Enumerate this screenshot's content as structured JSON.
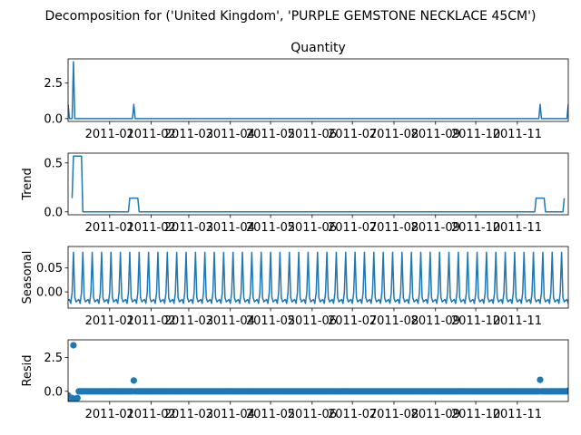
{
  "figure": {
    "suptitle": "Decomposition for ('United Kingdom', 'PURPLE GEMSTONE NECKLACE 45CM')"
  },
  "chart_data": [
    {
      "type": "line",
      "title": "Quantity",
      "ylabel": "",
      "xlim": [
        "2010-12-01",
        "2011-12-09"
      ],
      "ylim": [
        -0.2,
        4.2
      ],
      "yticks": [
        "0.0",
        "2.5"
      ],
      "xticks": [
        "2011-01",
        "2011-02",
        "2011-03",
        "2011-04",
        "2011-05",
        "2011-06",
        "2011-07",
        "2011-08",
        "2011-09",
        "2011-10",
        "2011-11"
      ],
      "color": "#1f77b4",
      "series": [
        {
          "points": [
            [
              "2010-12-01",
              1
            ],
            [
              "2010-12-02",
              0
            ],
            [
              "2010-12-04",
              0
            ],
            [
              "2010-12-05",
              4
            ],
            [
              "2010-12-06",
              0
            ],
            [
              "2011-01-18",
              0
            ],
            [
              "2011-01-19",
              1
            ],
            [
              "2011-01-20",
              0
            ],
            [
              "2011-11-17",
              0
            ],
            [
              "2011-11-18",
              1
            ],
            [
              "2011-11-19",
              0
            ],
            [
              "2011-12-08",
              0
            ],
            [
              "2011-12-09",
              1
            ]
          ]
        }
      ]
    },
    {
      "type": "line",
      "title": "",
      "ylabel": "Trend",
      "xlim": [
        "2010-12-01",
        "2011-12-09"
      ],
      "ylim": [
        -0.03,
        0.6
      ],
      "yticks": [
        "0.0",
        "0.5"
      ],
      "xticks": [
        "2011-01",
        "2011-02",
        "2011-03",
        "2011-04",
        "2011-05",
        "2011-06",
        "2011-07",
        "2011-08",
        "2011-09",
        "2011-10",
        "2011-11"
      ],
      "color": "#1f77b4",
      "series": [
        {
          "points": [
            [
              "2010-12-04",
              0.14
            ],
            [
              "2010-12-05",
              0.57
            ],
            [
              "2010-12-11",
              0.57
            ],
            [
              "2010-12-12",
              0
            ],
            [
              "2011-01-15",
              0
            ],
            [
              "2011-01-16",
              0.14
            ],
            [
              "2011-01-22",
              0.14
            ],
            [
              "2011-01-23",
              0
            ],
            [
              "2011-11-14",
              0
            ],
            [
              "2011-11-15",
              0.14
            ],
            [
              "2011-11-21",
              0.14
            ],
            [
              "2011-11-22",
              0
            ],
            [
              "2011-12-05",
              0
            ],
            [
              "2011-12-06",
              0.14
            ]
          ]
        }
      ]
    },
    {
      "type": "line",
      "title": "",
      "ylabel": "Seasonal",
      "xlim": [
        "2010-12-01",
        "2011-12-09"
      ],
      "ylim": [
        -0.034,
        0.095
      ],
      "yticks": [
        "0.00",
        "0.05"
      ],
      "xticks": [
        "2011-01",
        "2011-02",
        "2011-03",
        "2011-04",
        "2011-05",
        "2011-06",
        "2011-07",
        "2011-08",
        "2011-09",
        "2011-10",
        "2011-11"
      ],
      "color": "#1f77b4",
      "period_days": 7,
      "first_peak": "2010-12-05",
      "cycle_values": [
        0.083,
        -0.012,
        -0.021,
        -0.018,
        -0.016,
        -0.024,
        -0.002
      ]
    },
    {
      "type": "scatter",
      "title": "",
      "ylabel": "Resid",
      "xlim": [
        "2010-12-01",
        "2011-12-09"
      ],
      "ylim": [
        -0.75,
        3.8
      ],
      "yticks": [
        "0.0",
        "2.5"
      ],
      "xticks": [
        "2011-01",
        "2011-02",
        "2011-03",
        "2011-04",
        "2011-05",
        "2011-06",
        "2011-07",
        "2011-08",
        "2011-09",
        "2011-10",
        "2011-11"
      ],
      "color": "#1f77b4",
      "baseline": 0,
      "outliers": [
        [
          "2010-12-01",
          -0.3
        ],
        [
          "2010-12-02",
          -0.55
        ],
        [
          "2010-12-03",
          -0.6
        ],
        [
          "2010-12-04",
          -0.5
        ],
        [
          "2010-12-05",
          3.4
        ],
        [
          "2010-12-06",
          -0.55
        ],
        [
          "2010-12-07",
          -0.6
        ],
        [
          "2010-12-08",
          -0.5
        ],
        [
          "2011-01-19",
          0.8
        ],
        [
          "2011-11-18",
          0.85
        ],
        [
          "2011-12-09",
          0.05
        ]
      ]
    }
  ]
}
